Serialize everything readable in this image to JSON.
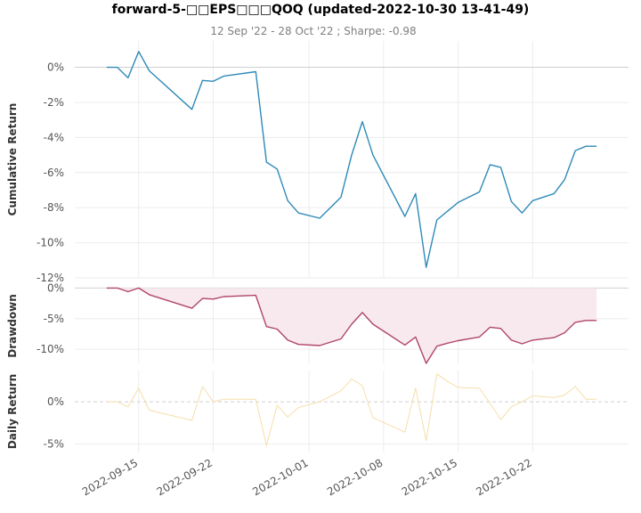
{
  "chart_data": {
    "type": "line",
    "title": "forward-5-□□EPS□□□QOQ (updated-2022-10-30 13-41-49)",
    "subtitle": "12 Sep '22 - 28 Oct '22 ;  Sharpe: -0.98",
    "x": [
      "2022-09-12",
      "2022-09-13",
      "2022-09-14",
      "2022-09-15",
      "2022-09-16",
      "2022-09-20",
      "2022-09-21",
      "2022-09-22",
      "2022-09-23",
      "2022-09-26",
      "2022-09-27",
      "2022-09-28",
      "2022-09-29",
      "2022-09-30",
      "2022-10-02",
      "2022-10-04",
      "2022-10-05",
      "2022-10-06",
      "2022-10-07",
      "2022-10-10",
      "2022-10-11",
      "2022-10-12",
      "2022-10-13",
      "2022-10-14",
      "2022-10-15",
      "2022-10-17",
      "2022-10-18",
      "2022-10-19",
      "2022-10-20",
      "2022-10-21",
      "2022-10-22",
      "2022-10-24",
      "2022-10-25",
      "2022-10-26",
      "2022-10-27",
      "2022-10-28"
    ],
    "x_ticks": [
      "2022-09-15",
      "2022-09-22",
      "2022-10-01",
      "2022-10-08",
      "2022-10-15",
      "2022-10-22"
    ],
    "panels": [
      {
        "name": "cumulative",
        "ylabel": "Cumulative Return",
        "ylim": [
          -12,
          1.5
        ],
        "yticks": [
          0,
          -2,
          -4,
          -6,
          -8,
          -10,
          -12
        ],
        "tick_suffix": "%",
        "color": "#2e8ab8",
        "values": [
          0,
          0,
          -0.6,
          0.9,
          -0.2,
          -2.4,
          -0.75,
          -0.8,
          -0.5,
          -0.25,
          -5.4,
          -5.8,
          -7.6,
          -8.3,
          -8.6,
          -7.4,
          -5.0,
          -3.1,
          -5.0,
          -8.5,
          -7.2,
          -11.4,
          -8.7,
          -8.2,
          -7.7,
          -7.1,
          -5.55,
          -5.7,
          -7.65,
          -8.3,
          -7.6,
          -7.2,
          -6.4,
          -4.75,
          -4.5,
          -4.5
        ]
      },
      {
        "name": "drawdown",
        "ylabel": "Drawdown",
        "ylim": [
          -12.3,
          0.2
        ],
        "yticks": [
          0,
          -5,
          -10
        ],
        "tick_suffix": "%",
        "color": "#b0446d",
        "fill": "#f7e9ed",
        "values": [
          0,
          0,
          -0.6,
          0,
          -1.1,
          -3.3,
          -1.7,
          -1.8,
          -1.4,
          -1.2,
          -6.3,
          -6.7,
          -8.5,
          -9.2,
          -9.4,
          -8.3,
          -5.9,
          -4.0,
          -5.9,
          -9.3,
          -8.0,
          -12.3,
          -9.5,
          -9.0,
          -8.6,
          -8.0,
          -6.4,
          -6.6,
          -8.5,
          -9.1,
          -8.5,
          -8.1,
          -7.3,
          -5.6,
          -5.3,
          -5.3
        ]
      },
      {
        "name": "daily",
        "ylabel": "Daily Return",
        "ylim": [
          -6,
          3.7
        ],
        "yticks": [
          0,
          -5
        ],
        "tick_suffix": "%",
        "color": "#f6deaa",
        "values": [
          0,
          0,
          -0.6,
          1.6,
          -1.0,
          -2.2,
          1.8,
          0,
          0.3,
          0.3,
          -5.2,
          -0.4,
          -1.8,
          -0.7,
          0,
          1.3,
          2.7,
          1.9,
          -1.9,
          -3.6,
          1.6,
          -4.6,
          3.3,
          2.4,
          1.7,
          1.6,
          -0.2,
          -2.1,
          -0.6,
          0,
          0.7,
          0.5,
          0.8,
          1.8,
          0.3,
          0.3
        ]
      }
    ],
    "grid": true,
    "legend": "none"
  }
}
